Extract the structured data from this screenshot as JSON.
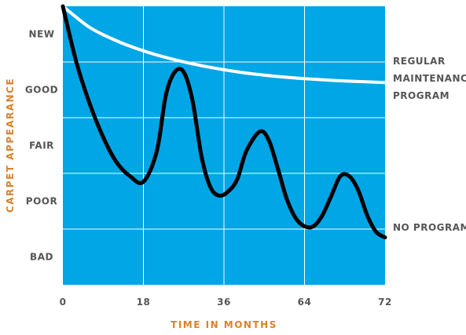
{
  "chart_data": {
    "type": "line",
    "title": "",
    "xlabel": "TIME IN MONTHS",
    "ylabel": "CARPET APPEARANCE",
    "x_ticks": [
      "0",
      "18",
      "36",
      "64",
      "72"
    ],
    "y_categories": [
      "BAD",
      "POOR",
      "FAIR",
      "GOOD",
      "NEW"
    ],
    "ylim": [
      0,
      5
    ],
    "grid": true,
    "series": [
      {
        "name": "REGULAR MAINTENANCE PROGRAM",
        "color": "#ffffff",
        "points": [
          [
            0,
            5.0
          ],
          [
            6,
            4.62
          ],
          [
            12,
            4.38
          ],
          [
            18,
            4.2
          ],
          [
            24,
            4.06
          ],
          [
            30,
            3.95
          ],
          [
            36,
            3.86
          ],
          [
            42,
            3.79
          ],
          [
            48,
            3.74
          ],
          [
            54,
            3.7
          ],
          [
            60,
            3.67
          ],
          [
            66,
            3.65
          ],
          [
            72,
            3.63
          ]
        ]
      },
      {
        "name": "NO PROGRAM",
        "color": "#000000",
        "points": [
          [
            0,
            5.0
          ],
          [
            3,
            4.0
          ],
          [
            6,
            3.25
          ],
          [
            9,
            2.65
          ],
          [
            12,
            2.2
          ],
          [
            15,
            1.95
          ],
          [
            18,
            1.85
          ],
          [
            21,
            2.4
          ],
          [
            23,
            3.4
          ],
          [
            25,
            3.82
          ],
          [
            27,
            3.82
          ],
          [
            29,
            3.3
          ],
          [
            31,
            2.3
          ],
          [
            33,
            1.75
          ],
          [
            35,
            1.6
          ],
          [
            37,
            1.68
          ],
          [
            39,
            1.9
          ],
          [
            41,
            2.4
          ],
          [
            44,
            2.75
          ],
          [
            46,
            2.6
          ],
          [
            48,
            2.1
          ],
          [
            50,
            1.55
          ],
          [
            52,
            1.2
          ],
          [
            54,
            1.05
          ],
          [
            56,
            1.05
          ],
          [
            58,
            1.25
          ],
          [
            60,
            1.6
          ],
          [
            62,
            1.95
          ],
          [
            64,
            1.95
          ],
          [
            66,
            1.7
          ],
          [
            68,
            1.25
          ],
          [
            70,
            0.95
          ],
          [
            72,
            0.85
          ]
        ]
      }
    ],
    "series_labels": {
      "maintenance": [
        "REGULAR",
        "MAINTENANCE",
        "PROGRAM"
      ],
      "none": "NO PROGRAM"
    },
    "colors": {
      "plot_bg": "#00a6e6",
      "grid": "#ffffff",
      "axis_title": "#d9822b",
      "label": "#555555"
    }
  }
}
